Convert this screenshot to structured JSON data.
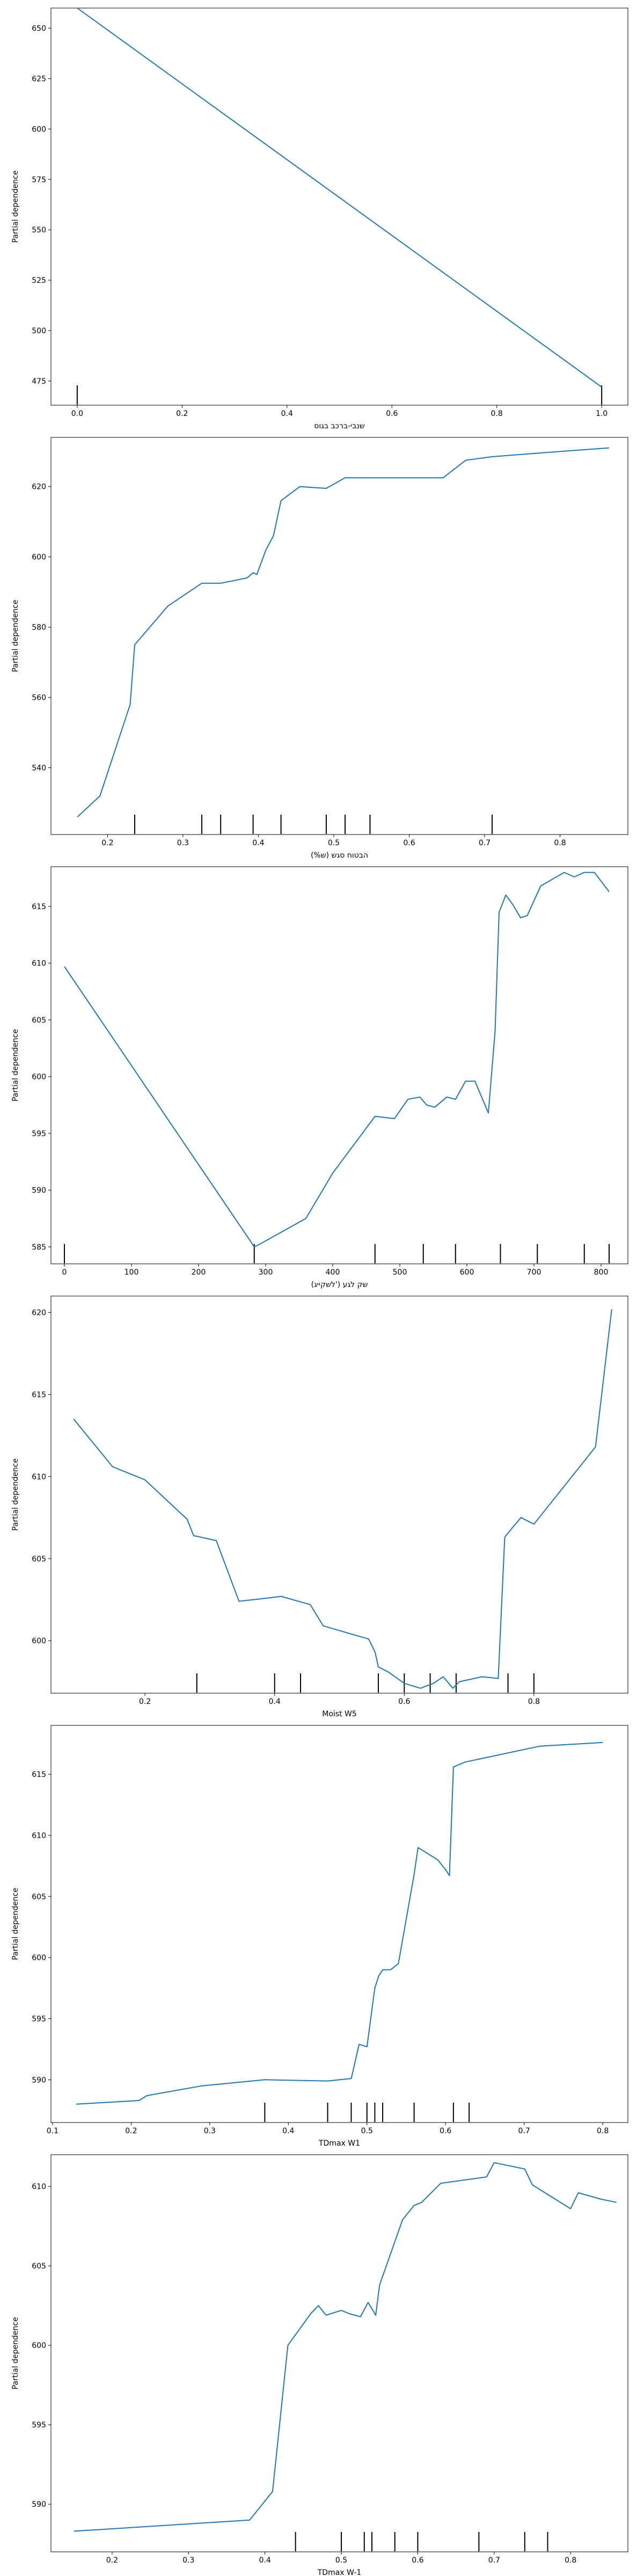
{
  "line_color": "#1f77b4",
  "chart_data": [
    {
      "type": "line",
      "xlabel": "שנבי-ברכב בגוס",
      "ylabel": "Partial dependence",
      "xlim": [
        -0.05,
        1.05
      ],
      "ylim": [
        463,
        660
      ],
      "xticks": [
        {
          "v": 0,
          "t": "0.0"
        },
        {
          "v": 0.2,
          "t": "0.2"
        },
        {
          "v": 0.4,
          "t": "0.4"
        },
        {
          "v": 0.6,
          "t": "0.6"
        },
        {
          "v": 0.8,
          "t": "0.8"
        },
        {
          "v": 1.0,
          "t": "1.0"
        }
      ],
      "yticks": [
        {
          "v": 475,
          "t": "475"
        },
        {
          "v": 500,
          "t": "500"
        },
        {
          "v": 525,
          "t": "525"
        },
        {
          "v": 550,
          "t": "550"
        },
        {
          "v": 575,
          "t": "575"
        },
        {
          "v": 600,
          "t": "600"
        },
        {
          "v": 625,
          "t": "625"
        },
        {
          "v": 650,
          "t": "650"
        }
      ],
      "x": [
        0,
        1
      ],
      "y": [
        660,
        472
      ],
      "rug": [
        0,
        1
      ]
    },
    {
      "type": "line",
      "xlabel": "(%ש) הבטוח סגש",
      "ylabel": "Partial dependence",
      "xlim": [
        0.125,
        0.89
      ],
      "ylim": [
        521,
        634
      ],
      "xticks": [
        {
          "v": 0.2,
          "t": "0.2"
        },
        {
          "v": 0.3,
          "t": "0.3"
        },
        {
          "v": 0.4,
          "t": "0.4"
        },
        {
          "v": 0.5,
          "t": "0.5"
        },
        {
          "v": 0.6,
          "t": "0.6"
        },
        {
          "v": 0.7,
          "t": "0.7"
        },
        {
          "v": 0.8,
          "t": "0.8"
        }
      ],
      "yticks": [
        {
          "v": 540,
          "t": "540"
        },
        {
          "v": 560,
          "t": "560"
        },
        {
          "v": 580,
          "t": "580"
        },
        {
          "v": 600,
          "t": "600"
        },
        {
          "v": 620,
          "t": "620"
        }
      ],
      "x": [
        0.16,
        0.19,
        0.23,
        0.236,
        0.28,
        0.325,
        0.35,
        0.385,
        0.393,
        0.398,
        0.41,
        0.42,
        0.43,
        0.455,
        0.49,
        0.515,
        0.548,
        0.645,
        0.675,
        0.71,
        0.8,
        0.865
      ],
      "y": [
        526,
        532,
        558,
        575,
        586,
        592.5,
        592.5,
        594,
        595.5,
        595,
        602,
        606,
        616,
        620,
        619.5,
        622.5,
        622.5,
        622.5,
        627.5,
        628.5,
        630,
        631
      ],
      "rug": [
        0.236,
        0.325,
        0.35,
        0.393,
        0.43,
        0.49,
        0.515,
        0.548,
        0.71
      ]
    },
    {
      "type": "line",
      "xlabel": "(לשקייג') שק לגע",
      "ylabel": "Partial dependence",
      "xlim": [
        -20,
        840
      ],
      "ylim": [
        583.5,
        618.5
      ],
      "xticks": [
        {
          "v": 0,
          "t": "0"
        },
        {
          "v": 100,
          "t": "100"
        },
        {
          "v": 200,
          "t": "200"
        },
        {
          "v": 300,
          "t": "300"
        },
        {
          "v": 400,
          "t": "400"
        },
        {
          "v": 500,
          "t": "500"
        },
        {
          "v": 600,
          "t": "600"
        },
        {
          "v": 700,
          "t": "700"
        },
        {
          "v": 800,
          "t": "800"
        }
      ],
      "yticks": [
        {
          "v": 585,
          "t": "585"
        },
        {
          "v": 590,
          "t": "590"
        },
        {
          "v": 595,
          "t": "595"
        },
        {
          "v": 600,
          "t": "600"
        },
        {
          "v": 605,
          "t": "605"
        },
        {
          "v": 610,
          "t": "610"
        },
        {
          "v": 615,
          "t": "615"
        }
      ],
      "x": [
        0,
        283,
        290,
        360,
        400,
        463,
        492,
        512,
        530,
        540,
        552,
        570,
        583,
        598,
        612,
        632,
        642,
        648,
        658,
        668,
        680,
        690,
        710,
        745,
        760,
        775,
        790,
        812
      ],
      "y": [
        609.7,
        585,
        585.2,
        587.5,
        591.5,
        596.5,
        596.3,
        598,
        598.2,
        597.5,
        597.3,
        598.2,
        598,
        599.6,
        599.6,
        596.8,
        604,
        614.5,
        616,
        615.2,
        614,
        614.2,
        616.8,
        618,
        617.6,
        618,
        618,
        616.3
      ],
      "rug": [
        0,
        283,
        463,
        535,
        583,
        650,
        705,
        775,
        812
      ]
    },
    {
      "type": "line",
      "xlabel": "Moist W5",
      "ylabel": "Partial dependence",
      "xlim": [
        0.055,
        0.945
      ],
      "ylim": [
        596.8,
        621
      ],
      "xticks": [
        {
          "v": 0.2,
          "t": "0.2"
        },
        {
          "v": 0.4,
          "t": "0.4"
        },
        {
          "v": 0.6,
          "t": "0.6"
        },
        {
          "v": 0.8,
          "t": "0.8"
        }
      ],
      "yticks": [
        {
          "v": 600,
          "t": "600"
        },
        {
          "v": 605,
          "t": "605"
        },
        {
          "v": 610,
          "t": "610"
        },
        {
          "v": 615,
          "t": "615"
        },
        {
          "v": 620,
          "t": "620"
        }
      ],
      "x": [
        0.09,
        0.15,
        0.2,
        0.265,
        0.275,
        0.31,
        0.345,
        0.39,
        0.41,
        0.455,
        0.475,
        0.545,
        0.555,
        0.56,
        0.575,
        0.6,
        0.625,
        0.645,
        0.66,
        0.675,
        0.685,
        0.72,
        0.745,
        0.755,
        0.765,
        0.78,
        0.8,
        0.895,
        0.92
      ],
      "y": [
        613.5,
        610.6,
        609.8,
        607.4,
        606.4,
        606.1,
        602.4,
        602.6,
        602.7,
        602.2,
        600.9,
        600.1,
        599.3,
        598.4,
        598.1,
        597.4,
        597.1,
        597.4,
        597.8,
        597.1,
        597.5,
        597.8,
        597.7,
        606.3,
        606.8,
        607.5,
        607.1,
        611.8,
        620.2
      ],
      "rug": [
        0.28,
        0.4,
        0.44,
        0.56,
        0.6,
        0.64,
        0.68,
        0.76,
        0.8
      ]
    },
    {
      "type": "line",
      "xlabel": "TDmax W1",
      "ylabel": "Partial dependence",
      "xlim": [
        0.098,
        0.832
      ],
      "ylim": [
        586.5,
        619
      ],
      "xticks": [
        {
          "v": 0.1,
          "t": "0.1"
        },
        {
          "v": 0.2,
          "t": "0.2"
        },
        {
          "v": 0.3,
          "t": "0.3"
        },
        {
          "v": 0.4,
          "t": "0.4"
        },
        {
          "v": 0.5,
          "t": "0.5"
        },
        {
          "v": 0.6,
          "t": "0.6"
        },
        {
          "v": 0.7,
          "t": "0.7"
        },
        {
          "v": 0.8,
          "t": "0.8"
        }
      ],
      "yticks": [
        {
          "v": 590,
          "t": "590"
        },
        {
          "v": 595,
          "t": "595"
        },
        {
          "v": 600,
          "t": "600"
        },
        {
          "v": 605,
          "t": "605"
        },
        {
          "v": 610,
          "t": "610"
        },
        {
          "v": 615,
          "t": "615"
        }
      ],
      "x": [
        0.13,
        0.21,
        0.22,
        0.29,
        0.37,
        0.45,
        0.48,
        0.49,
        0.5,
        0.51,
        0.515,
        0.52,
        0.53,
        0.54,
        0.56,
        0.565,
        0.59,
        0.6,
        0.605,
        0.61,
        0.625,
        0.72,
        0.8
      ],
      "y": [
        588.0,
        588.3,
        588.7,
        589.5,
        590.0,
        589.9,
        590.1,
        592.9,
        592.7,
        597.5,
        598.5,
        599.0,
        599.0,
        599.5,
        606.8,
        609.0,
        608.0,
        607.2,
        606.7,
        615.6,
        616.0,
        617.3,
        617.6
      ],
      "rug": [
        0.37,
        0.45,
        0.48,
        0.5,
        0.51,
        0.52,
        0.56,
        0.61,
        0.63
      ]
    },
    {
      "type": "line",
      "xlabel": "TDmax W-1",
      "ylabel": "Partial dependence",
      "xlim": [
        0.12,
        0.875
      ],
      "ylim": [
        587,
        612
      ],
      "xticks": [
        {
          "v": 0.2,
          "t": "0.2"
        },
        {
          "v": 0.3,
          "t": "0.3"
        },
        {
          "v": 0.4,
          "t": "0.4"
        },
        {
          "v": 0.5,
          "t": "0.5"
        },
        {
          "v": 0.6,
          "t": "0.6"
        },
        {
          "v": 0.7,
          "t": "0.7"
        },
        {
          "v": 0.8,
          "t": "0.8"
        }
      ],
      "yticks": [
        {
          "v": 590,
          "t": "590"
        },
        {
          "v": 595,
          "t": "595"
        },
        {
          "v": 600,
          "t": "600"
        },
        {
          "v": 605,
          "t": "605"
        },
        {
          "v": 610,
          "t": "610"
        }
      ],
      "x": [
        0.15,
        0.38,
        0.41,
        0.43,
        0.46,
        0.47,
        0.48,
        0.5,
        0.51,
        0.525,
        0.535,
        0.545,
        0.55,
        0.58,
        0.595,
        0.605,
        0.63,
        0.69,
        0.7,
        0.72,
        0.74,
        0.75,
        0.8,
        0.81,
        0.84,
        0.86
      ],
      "y": [
        588.3,
        589.0,
        590.8,
        600.0,
        602.0,
        602.5,
        601.9,
        602.2,
        602.0,
        601.8,
        602.7,
        601.9,
        603.8,
        607.9,
        608.8,
        609.0,
        610.2,
        610.6,
        611.5,
        611.3,
        611.1,
        610.1,
        608.6,
        609.6,
        609.2,
        609.0
      ],
      "rug": [
        0.44,
        0.5,
        0.53,
        0.54,
        0.57,
        0.6,
        0.68,
        0.74,
        0.77
      ]
    }
  ]
}
